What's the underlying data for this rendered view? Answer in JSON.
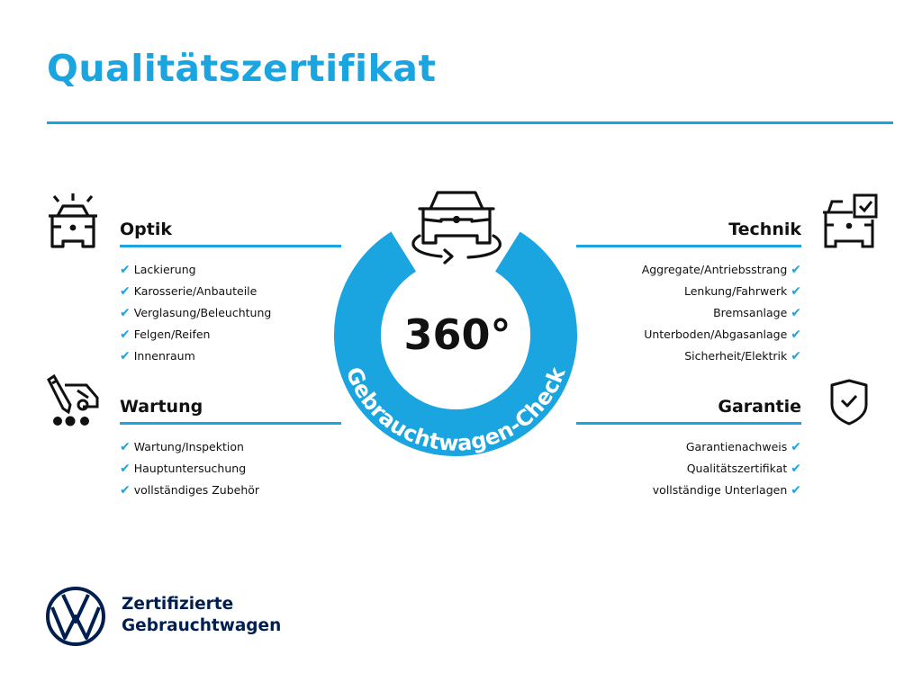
{
  "title": "Qualitätszertifikat",
  "colors": {
    "accent": "#1ba5e0",
    "brand": "#001e50",
    "text": "#111111"
  },
  "center": {
    "big_text": "360°",
    "ring_text": "Gebrauchtwagen-Check",
    "icon": "car-rotate-icon"
  },
  "sections": {
    "optik": {
      "heading": "Optik",
      "icon": "car-lights-icon",
      "items": [
        "Lackierung",
        "Karosserie/Anbauteile",
        "Verglasung/Beleuchtung",
        "Felgen/Reifen",
        "Innenraum"
      ]
    },
    "wartung": {
      "heading": "Wartung",
      "icon": "maintenance-icon",
      "items": [
        "Wartung/Inspektion",
        "Hauptuntersuchung",
        "vollständiges Zubehör"
      ]
    },
    "technik": {
      "heading": "Technik",
      "icon": "car-checkbox-icon",
      "items": [
        "Aggregate/Antriebsstrang",
        "Lenkung/Fahrwerk",
        "Bremsanlage",
        "Unterboden/Abgasanlage",
        "Sicherheit/Elektrik"
      ]
    },
    "garantie": {
      "heading": "Garantie",
      "icon": "shield-check-icon",
      "items": [
        "Garantienachweis",
        "Qualitätszertifikat",
        "vollständige Unterlagen"
      ]
    }
  },
  "check_glyph": "✔",
  "footer": {
    "line1": "Zertifizierte",
    "line2": "Gebrauchtwagen",
    "logo": "VW"
  }
}
